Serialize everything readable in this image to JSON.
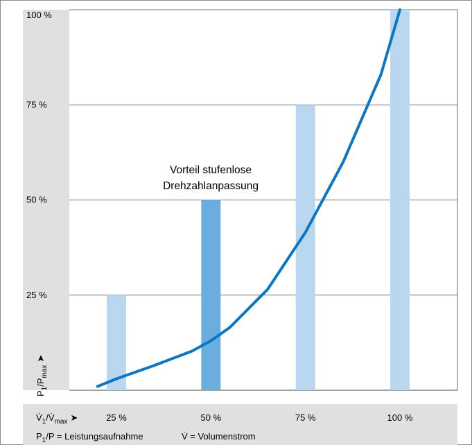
{
  "chart_data": {
    "type": "bar",
    "categories": [
      "25 %",
      "50 %",
      "75 %",
      "100 %"
    ],
    "series": [
      {
        "values": [
          25,
          50,
          75,
          100
        ]
      }
    ],
    "highlighted_category": "50 %",
    "curve": {
      "type": "line",
      "x": [
        20,
        25,
        35,
        45,
        50,
        55,
        65,
        75,
        85,
        95,
        100
      ],
      "y": [
        1,
        3,
        6.5,
        10.3,
        13,
        16.5,
        26.5,
        41.5,
        60,
        83,
        100
      ]
    },
    "ylim": [
      0,
      100
    ],
    "y_ticks": [
      "25 %",
      "50 %",
      "75 %",
      "100 %"
    ],
    "grid": true,
    "ylabel": {
      "base": "P",
      "sub1": "1",
      "mid": "/P",
      "sub2": "max",
      "arrow": "➤"
    },
    "xlabel": {
      "base": "V̇",
      "sub1": "1",
      "mid": "/V̇",
      "sub2": "max",
      "arrow": "➤"
    },
    "annotation": [
      "Vorteil stufenlose",
      "Drehzahlanpassung"
    ],
    "legend": {
      "power": {
        "base": "P",
        "sub": "1",
        "rest": "/P = Leistungsaufnahme"
      },
      "flow": "V̇ = Volumenstrom"
    },
    "colors": {
      "bar": "#b9d7ef",
      "bar_highlight": "#6aaee0",
      "curve": "#0b76c4",
      "panel": "#e0e0e0",
      "grid": "#444444"
    }
  }
}
